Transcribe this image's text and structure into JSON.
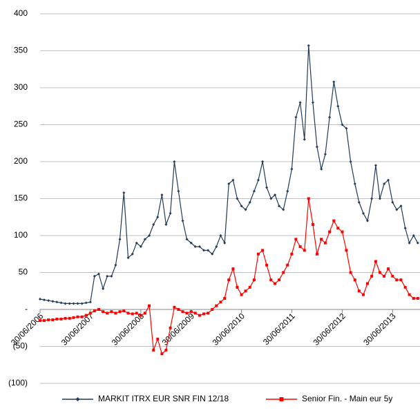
{
  "chart_data": {
    "type": "line",
    "x": [
      "30/06/2006",
      "30/07/2006",
      "30/08/2006",
      "30/09/2006",
      "30/10/2006",
      "30/11/2006",
      "30/12/2006",
      "30/01/2007",
      "28/02/2007",
      "30/03/2007",
      "30/04/2007",
      "30/05/2007",
      "30/06/2007",
      "30/07/2007",
      "30/08/2007",
      "30/09/2007",
      "30/10/2007",
      "30/11/2007",
      "30/12/2007",
      "30/01/2008",
      "28/02/2008",
      "30/03/2008",
      "30/04/2008",
      "30/05/2008",
      "30/06/2008",
      "30/07/2008",
      "30/08/2008",
      "30/09/2008",
      "30/10/2008",
      "30/11/2008",
      "30/12/2008",
      "30/01/2009",
      "28/02/2009",
      "30/03/2009",
      "30/04/2009",
      "30/05/2009",
      "30/06/2009",
      "30/07/2009",
      "30/08/2009",
      "30/09/2009",
      "30/10/2009",
      "30/11/2009",
      "30/12/2009",
      "30/01/2010",
      "28/02/2010",
      "30/03/2010",
      "30/04/2010",
      "30/05/2010",
      "30/06/2010",
      "30/07/2010",
      "30/08/2010",
      "30/09/2010",
      "30/10/2010",
      "30/11/2010",
      "30/12/2010",
      "30/01/2011",
      "28/02/2011",
      "30/03/2011",
      "30/04/2011",
      "30/05/2011",
      "30/06/2011",
      "30/07/2011",
      "30/08/2011",
      "30/09/2011",
      "30/10/2011",
      "30/11/2011",
      "30/12/2011",
      "30/01/2012",
      "28/02/2012",
      "30/03/2012",
      "30/04/2012",
      "30/05/2012",
      "30/06/2012",
      "30/07/2012",
      "30/08/2012",
      "30/09/2012",
      "30/10/2012",
      "30/11/2012",
      "30/12/2012",
      "30/01/2013",
      "28/02/2013",
      "30/03/2013",
      "30/04/2013",
      "30/05/2013",
      "30/06/2013",
      "30/07/2013",
      "30/08/2013",
      "30/09/2013",
      "30/10/2013",
      "30/11/2013",
      "30/12/2013"
    ],
    "series": [
      {
        "name": "MARKIT ITRX EUR SNR FIN 12/18",
        "color": "#1f3a5a",
        "marker": "diamond",
        "values": [
          14,
          13,
          12,
          11,
          10,
          9,
          8,
          8,
          8,
          8,
          8,
          9,
          10,
          45,
          48,
          28,
          45,
          45,
          60,
          95,
          158,
          70,
          75,
          90,
          85,
          95,
          100,
          115,
          125,
          155,
          115,
          130,
          200,
          160,
          120,
          95,
          90,
          85,
          85,
          80,
          80,
          75,
          85,
          100,
          90,
          170,
          175,
          150,
          140,
          135,
          145,
          160,
          175,
          200,
          165,
          150,
          155,
          140,
          135,
          160,
          190,
          260,
          280,
          230,
          357,
          280,
          220,
          190,
          210,
          260,
          308,
          275,
          250,
          245,
          200,
          170,
          145,
          130,
          120,
          150,
          195,
          150,
          170,
          175,
          145,
          135,
          140,
          110,
          90,
          100,
          90
        ]
      },
      {
        "name": "Senior Fin. - Main eur 5y",
        "color": "#ff0000",
        "marker": "square",
        "values": [
          -15,
          -15,
          -14,
          -14,
          -13,
          -13,
          -12,
          -12,
          -11,
          -10,
          -10,
          -8,
          -5,
          -2,
          0,
          -3,
          -5,
          -3,
          -5,
          -3,
          -2,
          -5,
          -6,
          -5,
          -8,
          -5,
          5,
          -55,
          -40,
          -60,
          -55,
          -25,
          3,
          0,
          -3,
          -5,
          -3,
          -5,
          -8,
          -6,
          -5,
          0,
          5,
          10,
          15,
          40,
          55,
          30,
          20,
          25,
          30,
          40,
          75,
          80,
          60,
          40,
          35,
          40,
          50,
          60,
          75,
          95,
          85,
          80,
          150,
          115,
          75,
          95,
          90,
          105,
          120,
          110,
          105,
          80,
          50,
          40,
          25,
          20,
          35,
          45,
          65,
          50,
          45,
          55,
          45,
          40,
          40,
          30,
          20,
          15,
          15
        ]
      }
    ],
    "xlim": [
      "30/06/2006",
      "15/01/2014"
    ],
    "xticks": [
      "30/06/2006",
      "30/06/2007",
      "30/06/2008",
      "30/06/2009",
      "30/06/2010",
      "30/06/2011",
      "30/06/2012",
      "30/06/2013"
    ],
    "ylim": [
      -100,
      400
    ],
    "yticks": [
      400,
      350,
      300,
      250,
      200,
      150,
      100,
      50,
      {
        "value": 0,
        "label": "-"
      },
      {
        "value": -50,
        "label": "(50)"
      },
      {
        "value": -100,
        "label": "(100)"
      }
    ],
    "grid": true,
    "legend": "bottom"
  }
}
